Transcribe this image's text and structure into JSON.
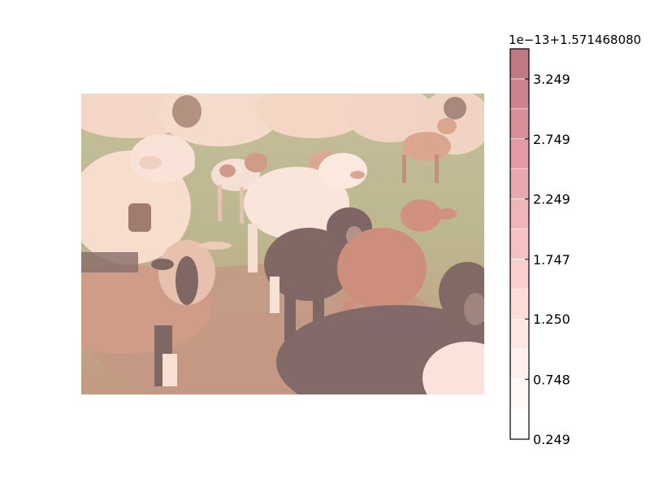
{
  "chart_data": {
    "type": "heatmap",
    "title": "",
    "xlabel": "",
    "ylabel": "",
    "background_image": "photo of a flock of sheep and lambs (white, black, brown, spotted) on a grassy field with a pink tinted overlay",
    "colorbar": {
      "offset_label": "1e−13+1.571468080",
      "ticks": [
        "0.249",
        "0.748",
        "1.250",
        "1.747",
        "2.249",
        "2.749",
        "3.249"
      ],
      "tick_values": [
        0.249,
        0.748,
        1.25,
        1.747,
        2.249,
        2.749,
        3.249
      ],
      "range": [
        0.249,
        3.5
      ],
      "levels": [
        0.249,
        0.5,
        0.75,
        1.0,
        1.25,
        1.5,
        1.75,
        2.0,
        2.25,
        2.5,
        2.75,
        3.0,
        3.25,
        3.5
      ],
      "colors": [
        "#fffefe",
        "#fff7f5",
        "#fff0ee",
        "#fee6e2",
        "#fddcd7",
        "#f9d0cd",
        "#f4c2c1",
        "#efb5b7",
        "#e9a8ad",
        "#e29ba2",
        "#d88f98",
        "#cc838e",
        "#bf7884"
      ],
      "colormap": "Reds"
    }
  }
}
